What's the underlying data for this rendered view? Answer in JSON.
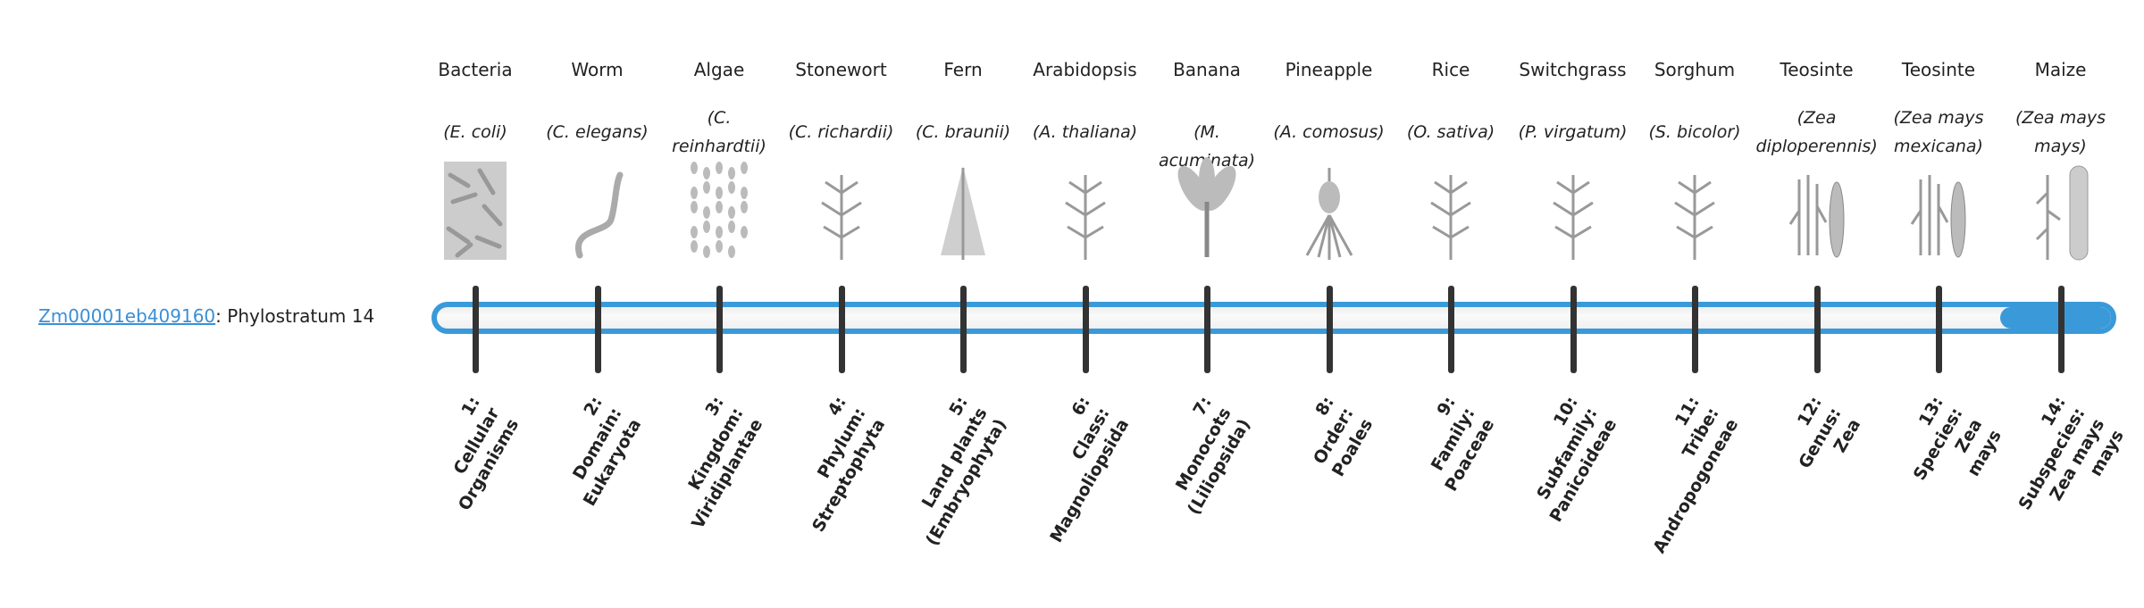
{
  "gene": {
    "id": "Zm00001eb409160",
    "suffix": ": Phylostratum 14"
  },
  "progress": {
    "current": 14,
    "total": 14,
    "color": "#3a9ad9"
  },
  "link_color": "#3a8fd6",
  "organisms": [
    {
      "common": "Bacteria",
      "species": "(E. coli)",
      "icon": "bacteria-icon",
      "stratum": [
        "1:",
        "Cellular",
        "Organisms"
      ]
    },
    {
      "common": "Worm",
      "species": "(C. elegans)",
      "icon": "worm-icon",
      "stratum": [
        "2:",
        "Domain:",
        "Eukaryota"
      ]
    },
    {
      "common": "Algae",
      "species": "(C. reinhardtii)",
      "icon": "algae-icon",
      "stratum": [
        "3:",
        "Kingdom:",
        "Viridiplantae"
      ]
    },
    {
      "common": "Stonewort",
      "species": "(C. richardii)",
      "icon": "stonewort-icon",
      "stratum": [
        "4:",
        "Phylum:",
        "Streptophyta"
      ]
    },
    {
      "common": "Fern",
      "species": "(C. braunii)",
      "icon": "fern-icon",
      "stratum": [
        "5:",
        "Land plants",
        "(Embryophyta)"
      ]
    },
    {
      "common": "Arabidopsis",
      "species": "(A. thaliana)",
      "icon": "arabidopsis-icon",
      "stratum": [
        "6:",
        "Class:",
        "Magnoliopsida"
      ]
    },
    {
      "common": "Banana",
      "species": "(M. acuminata)",
      "icon": "banana-icon",
      "stratum": [
        "7:",
        "Monocots",
        "(Liliopsida)"
      ]
    },
    {
      "common": "Pineapple",
      "species": "(A. comosus)",
      "icon": "pineapple-icon",
      "stratum": [
        "8:",
        "Order:",
        "Poales"
      ]
    },
    {
      "common": "Rice",
      "species": "(O. sativa)",
      "icon": "rice-icon",
      "stratum": [
        "9:",
        "Family:",
        "Poaceae"
      ]
    },
    {
      "common": "Switchgrass",
      "species": "(P. virgatum)",
      "icon": "switchgrass-icon",
      "stratum": [
        "10:",
        "Subfamily:",
        "Panicoideae"
      ]
    },
    {
      "common": "Sorghum",
      "species": "(S. bicolor)",
      "icon": "sorghum-icon",
      "stratum": [
        "11:",
        "Tribe:",
        "Andropogoneae"
      ]
    },
    {
      "common": "Teosinte",
      "species": "(Zea diploperennis)",
      "icon": "teosinte-icon",
      "stratum": [
        "12:",
        "Genus:",
        "Zea"
      ]
    },
    {
      "common": "Teosinte",
      "species": "(Zea mays mexicana)",
      "icon": "teosinte-icon",
      "stratum": [
        "13:",
        "Species:",
        "Zea",
        "mays"
      ]
    },
    {
      "common": "Maize",
      "species": "(Zea mays mays)",
      "icon": "maize-icon",
      "stratum": [
        "14:",
        "Subspecies:",
        "Zea mays",
        "mays"
      ]
    }
  ]
}
